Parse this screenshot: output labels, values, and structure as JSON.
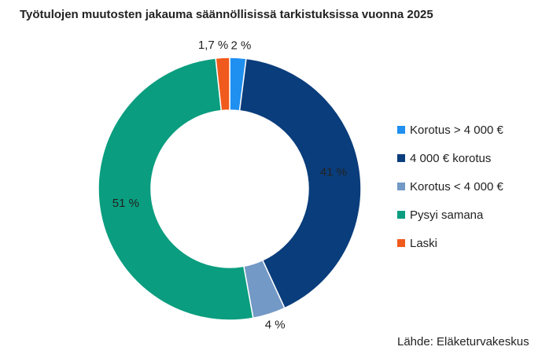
{
  "chart_data": {
    "type": "donut",
    "title": "Työtulojen muutosten jakauma säännöllisissä tarkistuksissa vuonna 2025",
    "categories": [
      "Korotus > 4 000 €",
      "4 000 € korotus",
      "Korotus < 4 000 €",
      "Pysyi samana",
      "Laski"
    ],
    "values": [
      2,
      41,
      4,
      51,
      1.7
    ],
    "value_labels": [
      "2 %",
      "41 %",
      "4 %",
      "51 %",
      "1,7 %"
    ],
    "colors": [
      "#1f8ff0",
      "#0a3d7b",
      "#7399c6",
      "#0a9d7f",
      "#f05a1c"
    ],
    "legend": "right",
    "source": "Lähde: Eläketurvakeskus"
  }
}
